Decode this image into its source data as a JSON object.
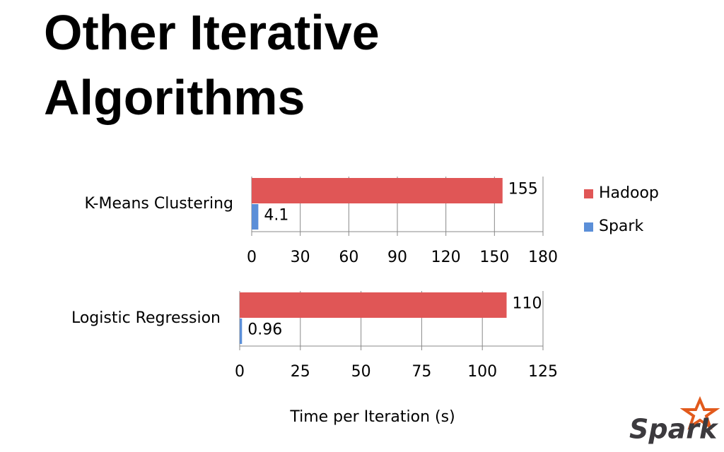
{
  "title": "Other Iterative Algorithms",
  "logo": "Spark",
  "chart_data": [
    {
      "type": "bar",
      "orientation": "horizontal",
      "categories": [
        "K-Means Clustering"
      ],
      "series": [
        {
          "name": "Hadoop",
          "color": "#e05656",
          "values": [
            155
          ]
        },
        {
          "name": "Spark",
          "color": "#5b8fd8",
          "values": [
            4.1
          ]
        }
      ],
      "xlim": [
        0,
        180
      ],
      "xticks": [
        0,
        30,
        60,
        90,
        120,
        150,
        180
      ],
      "grid": true,
      "legend": "right"
    },
    {
      "type": "bar",
      "orientation": "horizontal",
      "categories": [
        "Logistic Regression"
      ],
      "series": [
        {
          "name": "Hadoop",
          "color": "#e05656",
          "values": [
            110
          ]
        },
        {
          "name": "Spark",
          "color": "#5b8fd8",
          "values": [
            0.96
          ]
        }
      ],
      "xlim": [
        0,
        125
      ],
      "xticks": [
        0,
        25,
        50,
        75,
        100,
        125
      ],
      "grid": true,
      "xlabel": "Time per Iteration (s)"
    }
  ]
}
